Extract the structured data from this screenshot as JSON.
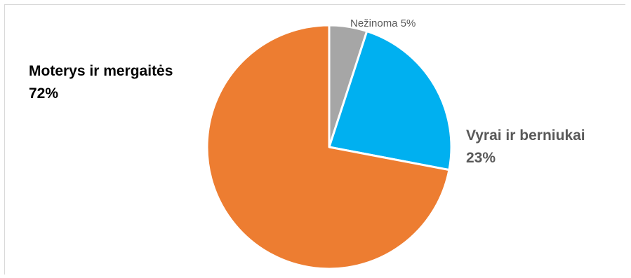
{
  "chart_data": {
    "type": "pie",
    "slices": [
      {
        "label": "Nežinoma",
        "pct_text": "5%",
        "value": 5,
        "color": "#a6a6a6"
      },
      {
        "label": "Vyrai ir berniukai",
        "pct_text": "23%",
        "value": 23,
        "color": "#00b0f0"
      },
      {
        "label": "Moterys ir mergaitės",
        "pct_text": "72%",
        "value": 72,
        "color": "#ed7d31"
      }
    ],
    "label_text_colors": {
      "Nežinoma": "#595959",
      "Vyrai ir berniukai": "#595959",
      "Moterys ir mergaitės": "#000000"
    }
  }
}
